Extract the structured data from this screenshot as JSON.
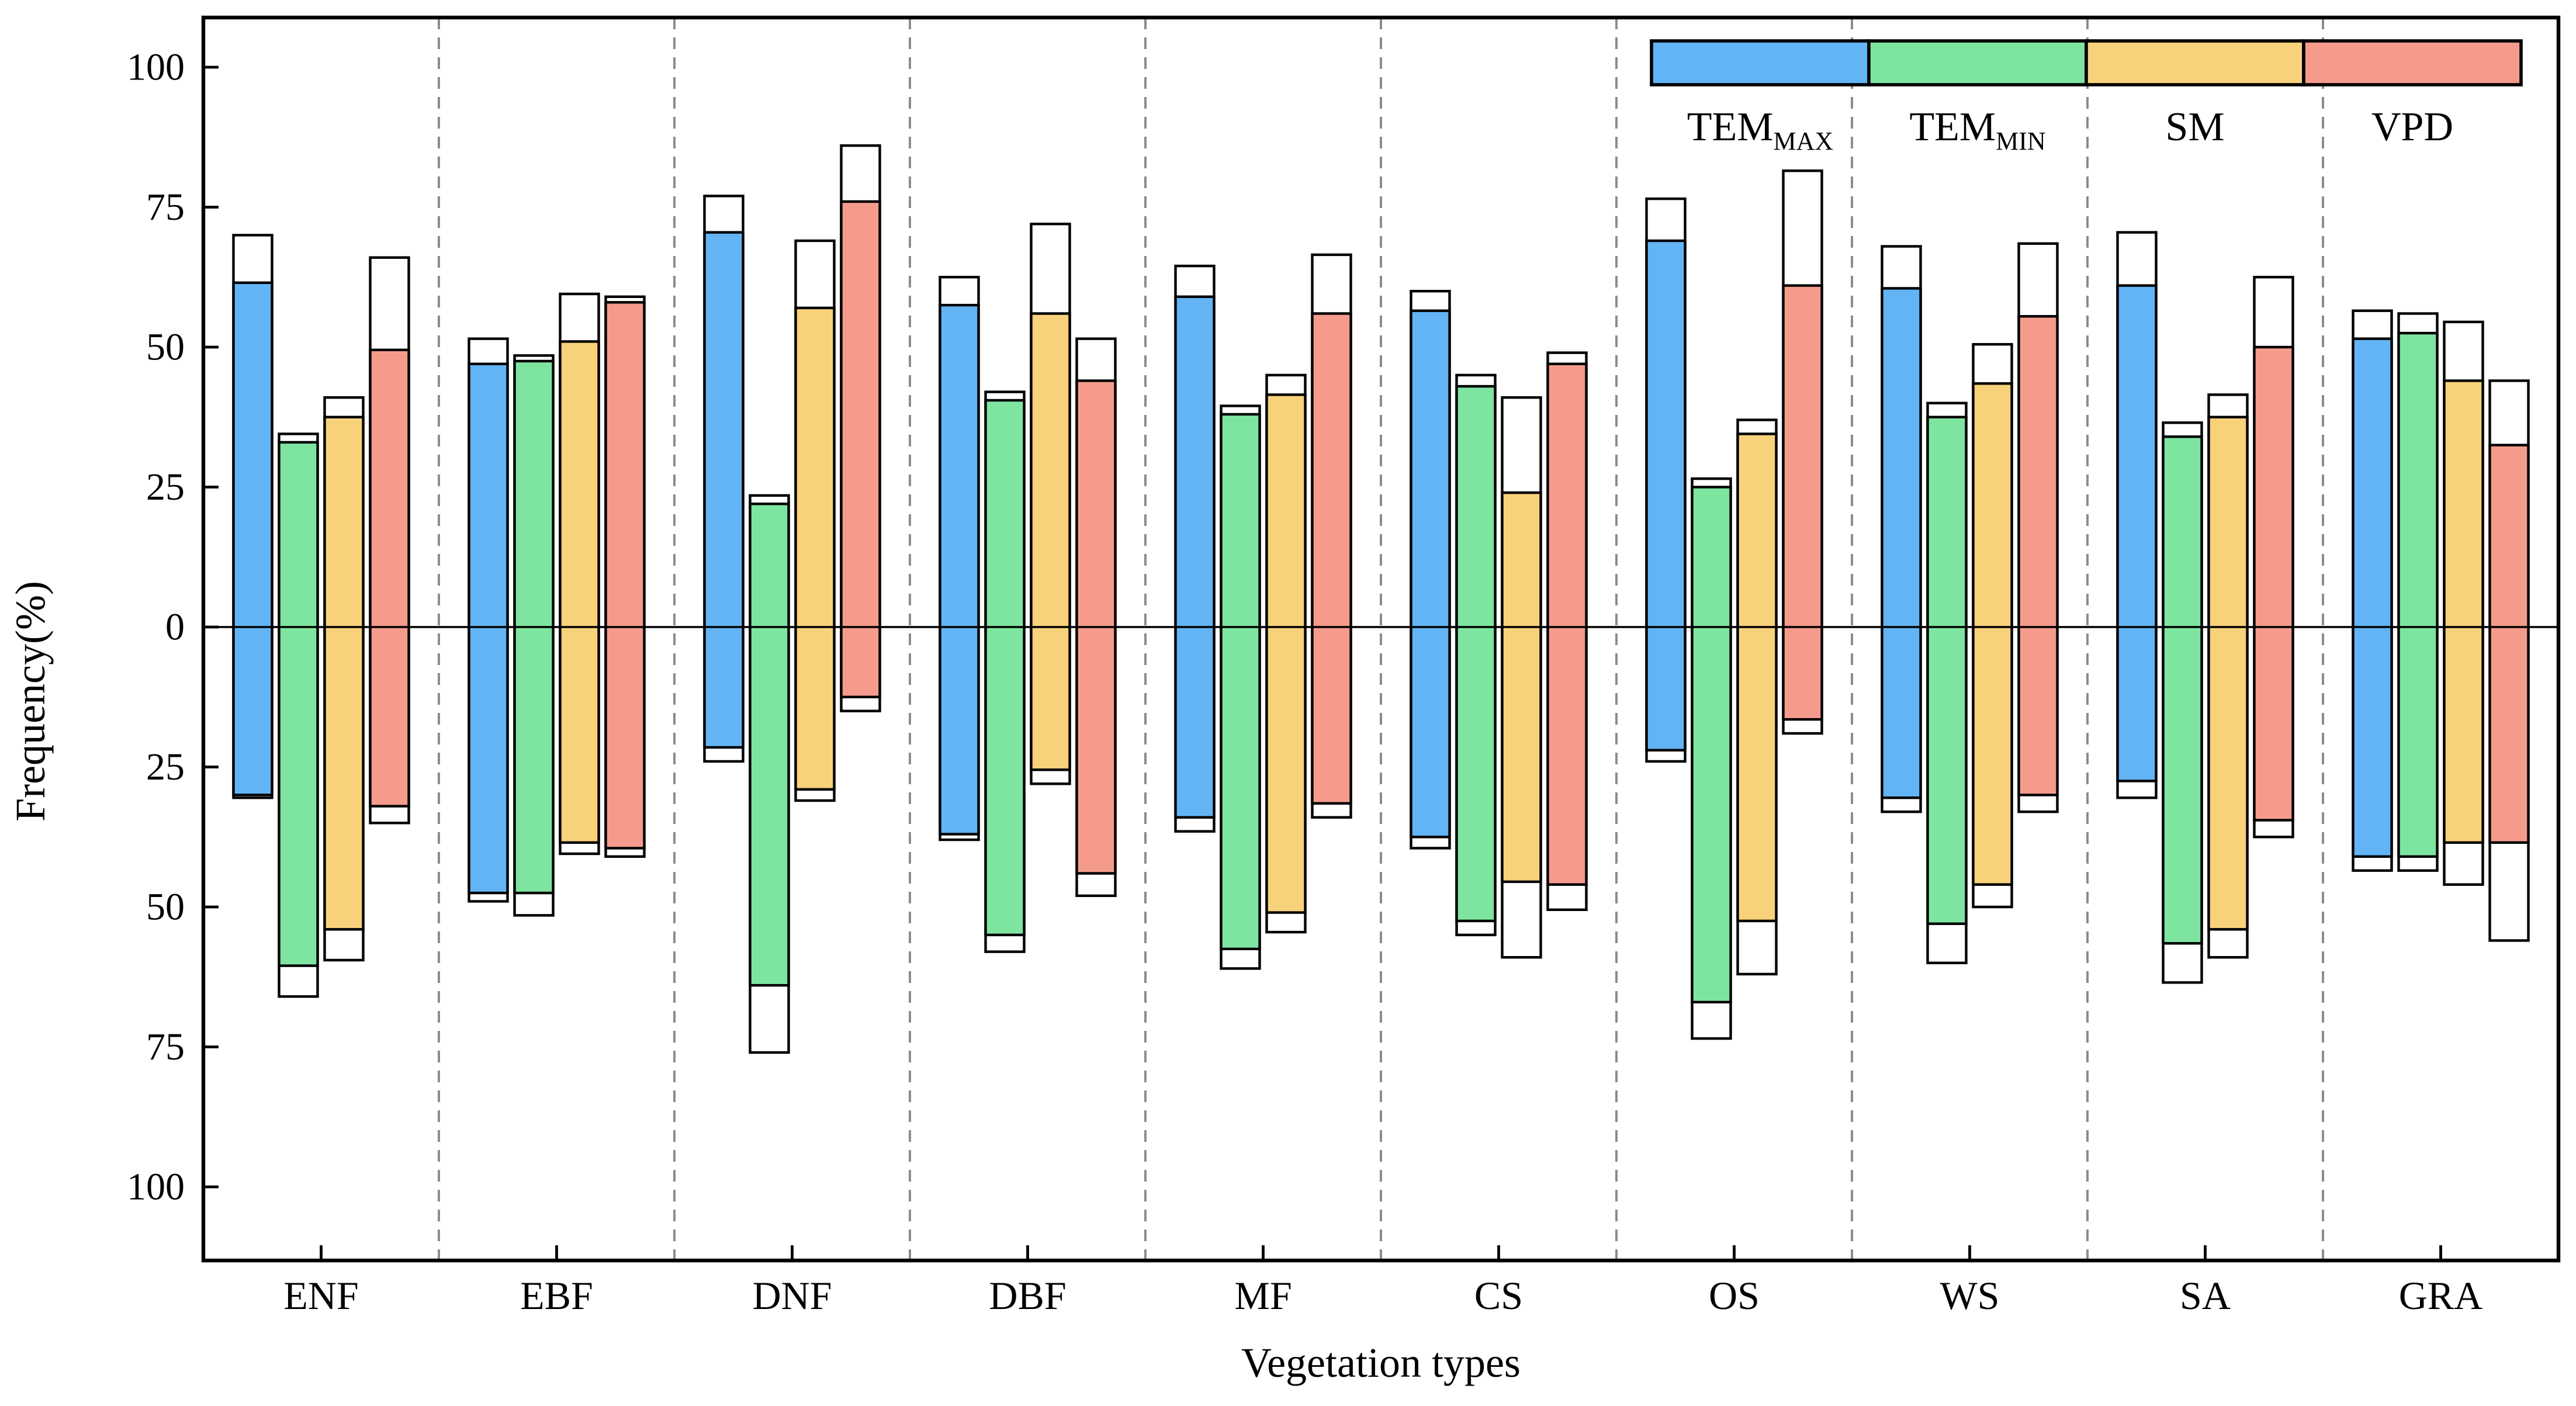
{
  "chart_data": {
    "type": "bar",
    "title": "",
    "xlabel": "Vegetation types",
    "ylabel": "Frequency(%)",
    "categories": [
      "ENF",
      "EBF",
      "DNF",
      "DBF",
      "MF",
      "CS",
      "OS",
      "WS",
      "SA",
      "GRA"
    ],
    "y_axis": {
      "tick_values": [
        100,
        75,
        50,
        25,
        0,
        -25,
        -50,
        -75,
        -100
      ],
      "tick_labels": [
        "100",
        "75",
        "50",
        "25",
        "0",
        "25",
        "50",
        "75",
        "100"
      ],
      "range": [
        -113,
        109
      ],
      "note": "tick labels show absolute values; axis mirrored around 0"
    },
    "grid": {
      "vertical_separators": "dashed gray lines between category slots",
      "color": "#8C8C8C"
    },
    "legend": {
      "position": "top-right",
      "entries": [
        "TEM_MAX",
        "TEM_MIN",
        "SM",
        "VPD"
      ]
    },
    "bar_semantics": "Colored fill spans [neg_fill,pos_fill]; black-outlined white box extends bar to [neg_total,pos_total]; values in Frequency %",
    "series": [
      {
        "name": "TEM_MAX",
        "label_main": "TEM",
        "label_sub": "MAX",
        "color": "#62B4F5",
        "bars": [
          {
            "category": "ENF",
            "pos_fill": 61.5,
            "pos_total": 70,
            "neg_fill": -30,
            "neg_total": -30.5
          },
          {
            "category": "EBF",
            "pos_fill": 47,
            "pos_total": 51.5,
            "neg_fill": -47.5,
            "neg_total": -49
          },
          {
            "category": "DNF",
            "pos_fill": 70.5,
            "pos_total": 77,
            "neg_fill": -21.5,
            "neg_total": -24
          },
          {
            "category": "DBF",
            "pos_fill": 57.5,
            "pos_total": 62.5,
            "neg_fill": -37,
            "neg_total": -38
          },
          {
            "category": "MF",
            "pos_fill": 59,
            "pos_total": 64.5,
            "neg_fill": -34,
            "neg_total": -36.5
          },
          {
            "category": "CS",
            "pos_fill": 56.5,
            "pos_total": 60,
            "neg_fill": -37.5,
            "neg_total": -39.5
          },
          {
            "category": "OS",
            "pos_fill": 69,
            "pos_total": 76.5,
            "neg_fill": -22,
            "neg_total": -24
          },
          {
            "category": "WS",
            "pos_fill": 60.5,
            "pos_total": 68,
            "neg_fill": -30.5,
            "neg_total": -33
          },
          {
            "category": "SA",
            "pos_fill": 61,
            "pos_total": 70.5,
            "neg_fill": -27.5,
            "neg_total": -30.5
          },
          {
            "category": "GRA",
            "pos_fill": 51.5,
            "pos_total": 56.5,
            "neg_fill": -41,
            "neg_total": -43.5
          }
        ]
      },
      {
        "name": "TEM_MIN",
        "label_main": "TEM",
        "label_sub": "MIN",
        "color": "#7EE5A0",
        "bars": [
          {
            "category": "ENF",
            "pos_fill": 33,
            "pos_total": 34.5,
            "neg_fill": -60.5,
            "neg_total": -66
          },
          {
            "category": "EBF",
            "pos_fill": 47.5,
            "pos_total": 48.5,
            "neg_fill": -47.5,
            "neg_total": -51.5
          },
          {
            "category": "DNF",
            "pos_fill": 22,
            "pos_total": 23.5,
            "neg_fill": -64,
            "neg_total": -76
          },
          {
            "category": "DBF",
            "pos_fill": 40.5,
            "pos_total": 42,
            "neg_fill": -55,
            "neg_total": -58
          },
          {
            "category": "MF",
            "pos_fill": 38,
            "pos_total": 39.5,
            "neg_fill": -57.5,
            "neg_total": -61
          },
          {
            "category": "CS",
            "pos_fill": 43,
            "pos_total": 45,
            "neg_fill": -52.5,
            "neg_total": -55
          },
          {
            "category": "OS",
            "pos_fill": 25,
            "pos_total": 26.5,
            "neg_fill": -67,
            "neg_total": -73.5
          },
          {
            "category": "WS",
            "pos_fill": 37.5,
            "pos_total": 40,
            "neg_fill": -53,
            "neg_total": -60
          },
          {
            "category": "SA",
            "pos_fill": 34,
            "pos_total": 36.5,
            "neg_fill": -56.5,
            "neg_total": -63.5
          },
          {
            "category": "GRA",
            "pos_fill": 52.5,
            "pos_total": 56,
            "neg_fill": -41,
            "neg_total": -43.5
          }
        ]
      },
      {
        "name": "SM",
        "label_main": "SM",
        "label_sub": "",
        "color": "#F8D17B",
        "bars": [
          {
            "category": "ENF",
            "pos_fill": 37.5,
            "pos_total": 41,
            "neg_fill": -54,
            "neg_total": -59.5
          },
          {
            "category": "EBF",
            "pos_fill": 51,
            "pos_total": 59.5,
            "neg_fill": -38.5,
            "neg_total": -40.5
          },
          {
            "category": "DNF",
            "pos_fill": 57,
            "pos_total": 69,
            "neg_fill": -29,
            "neg_total": -31
          },
          {
            "category": "DBF",
            "pos_fill": 56,
            "pos_total": 72,
            "neg_fill": -25.5,
            "neg_total": -28
          },
          {
            "category": "MF",
            "pos_fill": 41.5,
            "pos_total": 45,
            "neg_fill": -51,
            "neg_total": -54.5
          },
          {
            "category": "CS",
            "pos_fill": 24,
            "pos_total": 41,
            "neg_fill": -45.5,
            "neg_total": -59
          },
          {
            "category": "OS",
            "pos_fill": 34.5,
            "pos_total": 37,
            "neg_fill": -52.5,
            "neg_total": -62
          },
          {
            "category": "WS",
            "pos_fill": 43.5,
            "pos_total": 50.5,
            "neg_fill": -46,
            "neg_total": -50
          },
          {
            "category": "SA",
            "pos_fill": 37.5,
            "pos_total": 41.5,
            "neg_fill": -54,
            "neg_total": -59
          },
          {
            "category": "GRA",
            "pos_fill": 44,
            "pos_total": 54.5,
            "neg_fill": -38.5,
            "neg_total": -46
          }
        ]
      },
      {
        "name": "VPD",
        "label_main": "VPD",
        "label_sub": "",
        "color": "#F59B8C",
        "bars": [
          {
            "category": "ENF",
            "pos_fill": 49.5,
            "pos_total": 66,
            "neg_fill": -32,
            "neg_total": -35
          },
          {
            "category": "EBF",
            "pos_fill": 58,
            "pos_total": 59,
            "neg_fill": -39.5,
            "neg_total": -41
          },
          {
            "category": "DNF",
            "pos_fill": 76,
            "pos_total": 86,
            "neg_fill": -12.5,
            "neg_total": -15
          },
          {
            "category": "DBF",
            "pos_fill": 44,
            "pos_total": 51.5,
            "neg_fill": -44,
            "neg_total": -48
          },
          {
            "category": "MF",
            "pos_fill": 56,
            "pos_total": 66.5,
            "neg_fill": -31.5,
            "neg_total": -34
          },
          {
            "category": "CS",
            "pos_fill": 47,
            "pos_total": 49,
            "neg_fill": -46,
            "neg_total": -50.5
          },
          {
            "category": "OS",
            "pos_fill": 61,
            "pos_total": 81.5,
            "neg_fill": -16.5,
            "neg_total": -19
          },
          {
            "category": "WS",
            "pos_fill": 55.5,
            "pos_total": 68.5,
            "neg_fill": -30,
            "neg_total": -33
          },
          {
            "category": "SA",
            "pos_fill": 50,
            "pos_total": 62.5,
            "neg_fill": -34.5,
            "neg_total": -37.5
          },
          {
            "category": "GRA",
            "pos_fill": 32.5,
            "pos_total": 44,
            "neg_fill": -38.5,
            "neg_total": -56
          }
        ]
      }
    ]
  }
}
